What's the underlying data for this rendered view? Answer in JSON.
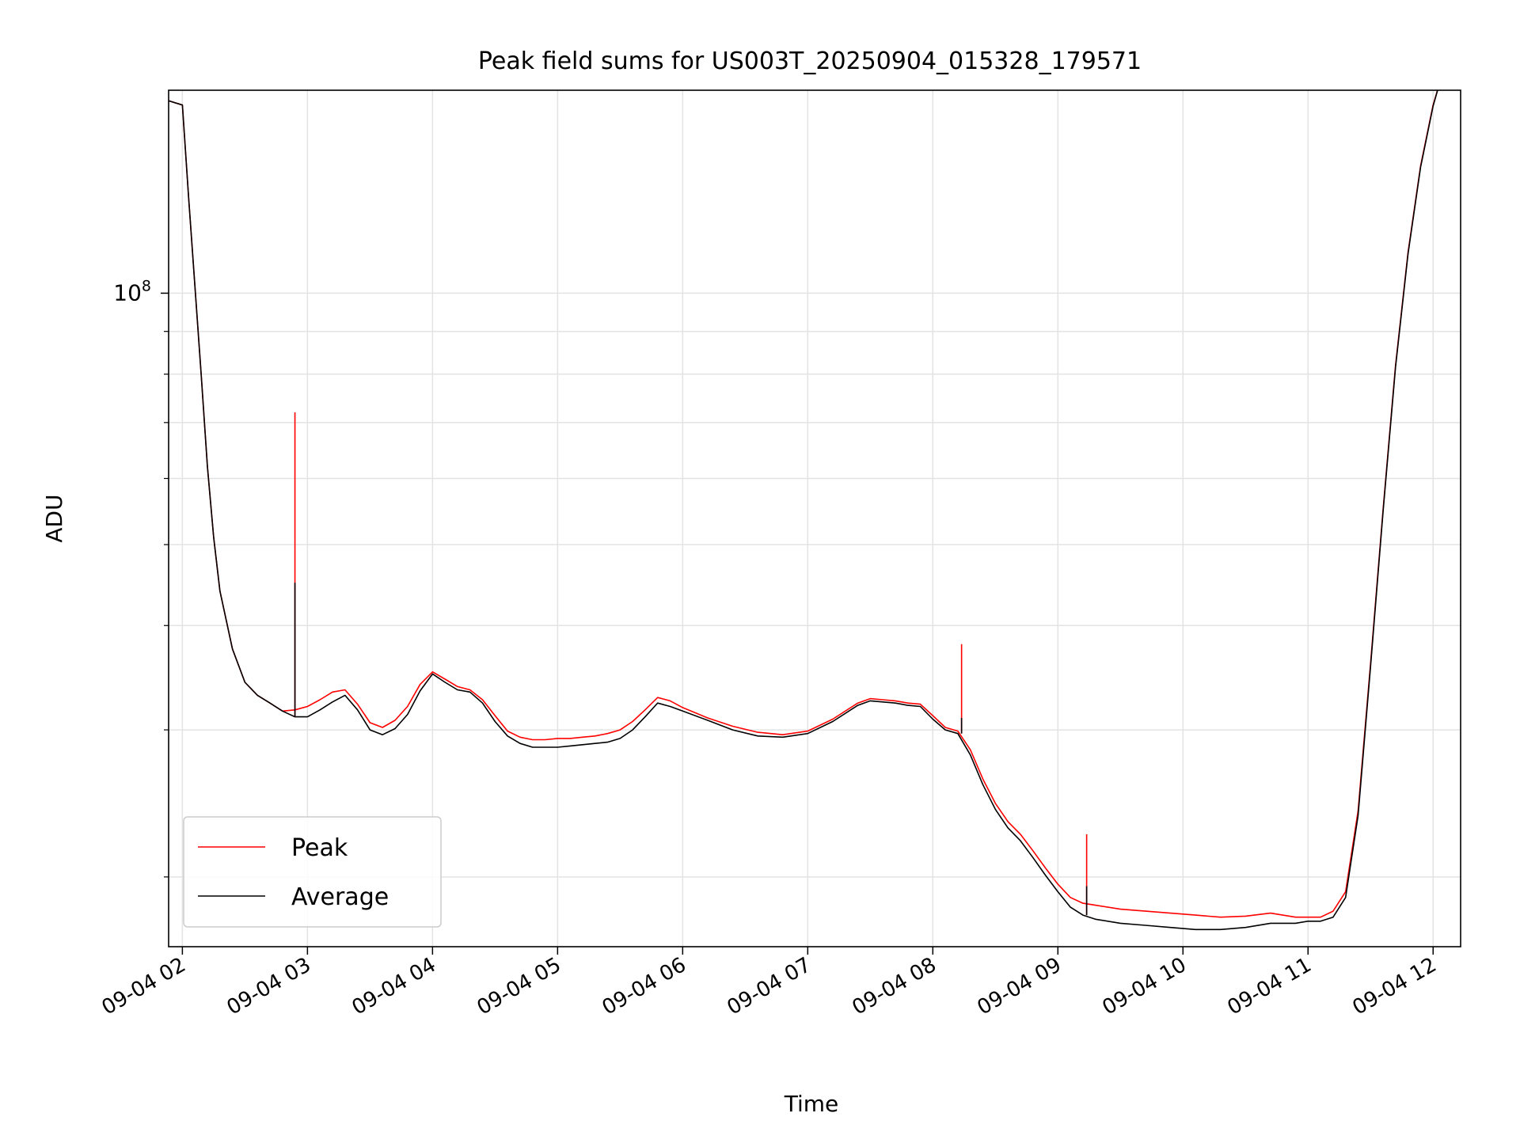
{
  "chart_data": {
    "type": "line",
    "title": "Peak field sums for US003T_20250904_015328_179571",
    "xlabel": "Time",
    "ylabel": "ADU",
    "yscale": "log",
    "grid": true,
    "legend_location": "lower-left",
    "x_unit": "hours (2025-09-04)",
    "xlim": [
      1.89,
      12.22
    ],
    "ylim": [
      16500000,
      175000000
    ],
    "x_ticks": [
      2,
      3,
      4,
      5,
      6,
      7,
      8,
      9,
      10,
      11,
      12
    ],
    "x_tick_labels": [
      "09-04 02",
      "09-04 03",
      "09-04 04",
      "09-04 05",
      "09-04 06",
      "09-04 07",
      "09-04 08",
      "09-04 09",
      "09-04 10",
      "09-04 11",
      "09-04 12"
    ],
    "y_major_tick_labels": [
      {
        "value": 100000000,
        "base": "10",
        "exp": "8"
      }
    ],
    "y_minor_ticks": [
      20000000,
      30000000,
      40000000,
      50000000,
      60000000,
      70000000,
      80000000,
      90000000,
      200000000
    ],
    "series": [
      {
        "name": "Peak",
        "color": "#ff0000",
        "x": [
          1.89,
          2.0,
          2.05,
          2.1,
          2.15,
          2.2,
          2.25,
          2.3,
          2.4,
          2.5,
          2.6,
          2.7,
          2.8,
          2.9,
          3.0,
          3.1,
          3.2,
          3.3,
          3.4,
          3.5,
          3.6,
          3.7,
          3.8,
          3.9,
          4.0,
          4.1,
          4.2,
          4.3,
          4.4,
          4.5,
          4.6,
          4.7,
          4.8,
          4.9,
          5.0,
          5.1,
          5.2,
          5.3,
          5.4,
          5.5,
          5.6,
          5.7,
          5.8,
          5.9,
          6.0,
          6.2,
          6.4,
          6.6,
          6.8,
          7.0,
          7.2,
          7.4,
          7.5,
          7.6,
          7.7,
          7.8,
          7.9,
          8.0,
          8.1,
          8.2,
          8.3,
          8.4,
          8.5,
          8.6,
          8.7,
          8.8,
          8.9,
          9.0,
          9.1,
          9.2,
          9.3,
          9.5,
          9.7,
          9.9,
          10.1,
          10.3,
          10.5,
          10.7,
          10.9,
          11.0,
          11.1,
          11.2,
          11.3,
          11.4,
          11.5,
          11.6,
          11.7,
          11.8,
          11.9,
          12.0,
          12.05
        ],
        "y": [
          170000000,
          168000000,
          130000000,
          102000000,
          80000000,
          62000000,
          51000000,
          44000000,
          37500000,
          34200000,
          33000000,
          32300000,
          31600000,
          31700000,
          32000000,
          32600000,
          33300000,
          33500000,
          32200000,
          30600000,
          30200000,
          30800000,
          32000000,
          34000000,
          35200000,
          34500000,
          33800000,
          33500000,
          32600000,
          31200000,
          29900000,
          29400000,
          29200000,
          29200000,
          29300000,
          29300000,
          29400000,
          29500000,
          29700000,
          30000000,
          30700000,
          31700000,
          32800000,
          32500000,
          31900000,
          31000000,
          30300000,
          29800000,
          29600000,
          29900000,
          30900000,
          32300000,
          32700000,
          32600000,
          32500000,
          32300000,
          32200000,
          31200000,
          30200000,
          29900000,
          28400000,
          26200000,
          24500000,
          23300000,
          22500000,
          21500000,
          20500000,
          19600000,
          18900000,
          18600000,
          18500000,
          18300000,
          18200000,
          18100000,
          18000000,
          17900000,
          17950000,
          18100000,
          17900000,
          17900000,
          17900000,
          18200000,
          19200000,
          24000000,
          36000000,
          55000000,
          82000000,
          112000000,
          142000000,
          168000000,
          178000000
        ]
      },
      {
        "name": "Average",
        "color": "#000000",
        "x": [
          1.89,
          2.0,
          2.05,
          2.1,
          2.15,
          2.2,
          2.25,
          2.3,
          2.4,
          2.5,
          2.6,
          2.7,
          2.8,
          2.9,
          3.0,
          3.1,
          3.2,
          3.3,
          3.4,
          3.5,
          3.6,
          3.7,
          3.8,
          3.9,
          4.0,
          4.1,
          4.2,
          4.3,
          4.4,
          4.5,
          4.6,
          4.7,
          4.8,
          4.9,
          5.0,
          5.1,
          5.2,
          5.3,
          5.4,
          5.5,
          5.6,
          5.7,
          5.8,
          5.9,
          6.0,
          6.2,
          6.4,
          6.6,
          6.8,
          7.0,
          7.2,
          7.4,
          7.5,
          7.6,
          7.7,
          7.8,
          7.9,
          8.0,
          8.1,
          8.2,
          8.3,
          8.4,
          8.5,
          8.6,
          8.7,
          8.8,
          8.9,
          9.0,
          9.1,
          9.2,
          9.3,
          9.5,
          9.7,
          9.9,
          10.1,
          10.3,
          10.5,
          10.7,
          10.9,
          11.0,
          11.1,
          11.2,
          11.3,
          11.4,
          11.5,
          11.6,
          11.7,
          11.8,
          11.9,
          12.0,
          12.05
        ],
        "y": [
          170000000,
          168000000,
          130000000,
          102000000,
          80000000,
          62000000,
          51000000,
          44000000,
          37500000,
          34200000,
          33000000,
          32300000,
          31600000,
          31100000,
          31100000,
          31700000,
          32400000,
          33000000,
          31700000,
          30000000,
          29600000,
          30100000,
          31300000,
          33400000,
          35000000,
          34200000,
          33500000,
          33300000,
          32300000,
          30700000,
          29500000,
          28900000,
          28600000,
          28600000,
          28600000,
          28700000,
          28800000,
          28900000,
          29000000,
          29300000,
          30000000,
          31100000,
          32300000,
          32000000,
          31600000,
          30800000,
          30000000,
          29500000,
          29400000,
          29700000,
          30700000,
          32100000,
          32500000,
          32400000,
          32300000,
          32100000,
          32000000,
          30900000,
          30000000,
          29700000,
          28000000,
          25800000,
          24100000,
          22900000,
          22100000,
          21100000,
          20100000,
          19200000,
          18400000,
          18000000,
          17800000,
          17600000,
          17500000,
          17400000,
          17300000,
          17300000,
          17400000,
          17600000,
          17600000,
          17700000,
          17700000,
          17900000,
          18900000,
          23700000,
          35700000,
          54700000,
          81600000,
          111500000,
          141500000,
          167500000,
          178000000
        ]
      }
    ],
    "spikes": [
      {
        "x": 2.9,
        "peak": 72000000,
        "average": 45000000
      },
      {
        "x": 8.23,
        "peak": 38000000,
        "average": 31000000
      },
      {
        "x": 9.23,
        "peak": 22500000,
        "average": 19500000
      }
    ]
  }
}
